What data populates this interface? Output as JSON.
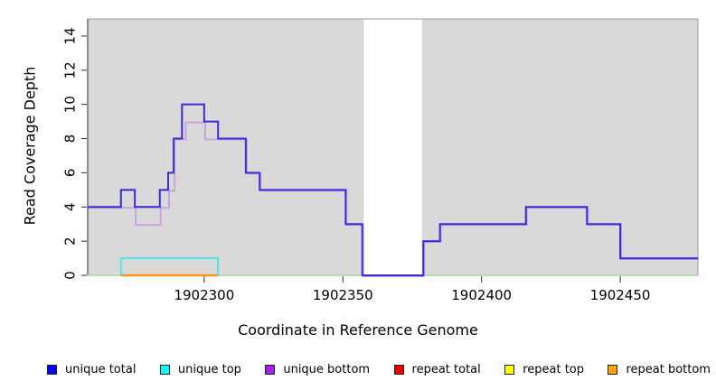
{
  "figure": {
    "x_axis_title": "Coordinate in Reference Genome",
    "y_axis_title": "Read Coverage Depth"
  },
  "chart_data": {
    "type": "line",
    "subtype": "step-coverage",
    "title": "",
    "xlabel": "Coordinate in Reference Genome",
    "ylabel": "Read Coverage Depth",
    "xlim": [
      1902258,
      1902478
    ],
    "ylim": [
      0,
      15
    ],
    "x_ticks": [
      1902300,
      1902350,
      1902400,
      1902450
    ],
    "y_ticks": [
      0,
      2,
      4,
      6,
      8,
      10,
      12,
      14
    ],
    "grid": false,
    "plot_background": "#d9d9d9",
    "gap_region": {
      "x_start": 1902357.5,
      "x_end": 1902378.5,
      "color": "#ffffff"
    },
    "series": [
      {
        "name": "zero-baseline",
        "color": "#9fdc9f",
        "width": 1.5,
        "steps": [
          [
            1902258,
            0
          ]
        ],
        "x_end": 1902478
      },
      {
        "name": "repeat bottom",
        "color": "#ff9414",
        "width": 2.4,
        "steps": [
          [
            1902270,
            0
          ]
        ],
        "x_end": 1902305
      },
      {
        "name": "unique top",
        "color": "#45e5e8",
        "width": 1.8,
        "steps": [
          [
            1902270,
            0
          ],
          [
            1902270,
            1
          ],
          [
            1902305,
            0
          ]
        ],
        "x_end": 1902305
      },
      {
        "name": "unique bottom",
        "color": "#c79fdf",
        "width": 1.8,
        "offset": 1,
        "steps": [
          [
            1902258,
            4
          ],
          [
            1902275,
            3
          ],
          [
            1902284,
            4
          ],
          [
            1902287,
            5
          ],
          [
            1902289,
            8
          ],
          [
            1902293,
            9
          ],
          [
            1902300,
            8
          ],
          [
            1902315,
            6
          ],
          [
            1902320,
            5
          ],
          [
            1902351,
            3
          ],
          [
            1902357,
            0
          ],
          [
            1902379,
            2
          ],
          [
            1902385,
            3
          ],
          [
            1902416,
            4
          ],
          [
            1902438,
            3
          ],
          [
            1902450,
            1
          ]
        ],
        "x_end": 1902478
      },
      {
        "name": "unique total",
        "color": "#3a2bd8",
        "width": 2,
        "steps": [
          [
            1902258,
            4
          ],
          [
            1902270,
            5
          ],
          [
            1902275,
            4
          ],
          [
            1902284,
            5
          ],
          [
            1902287,
            6
          ],
          [
            1902289,
            8
          ],
          [
            1902292,
            10
          ],
          [
            1902300,
            9
          ],
          [
            1902305,
            8
          ],
          [
            1902315,
            6
          ],
          [
            1902320,
            5
          ],
          [
            1902351,
            3
          ],
          [
            1902357,
            0
          ],
          [
            1902379,
            2
          ],
          [
            1902385,
            3
          ],
          [
            1902416,
            4
          ],
          [
            1902438,
            3
          ],
          [
            1902450,
            1
          ]
        ],
        "x_end": 1902478
      }
    ],
    "legend": [
      {
        "label": "unique total",
        "color": "#0000ff"
      },
      {
        "label": "unique top",
        "color": "#00ffff"
      },
      {
        "label": "unique bottom",
        "color": "#a020f0"
      },
      {
        "label": "repeat total",
        "color": "#ee0000"
      },
      {
        "label": "repeat top",
        "color": "#ffff00"
      },
      {
        "label": "repeat bottom",
        "color": "#ffa500"
      }
    ],
    "legend_position": "bottom"
  }
}
